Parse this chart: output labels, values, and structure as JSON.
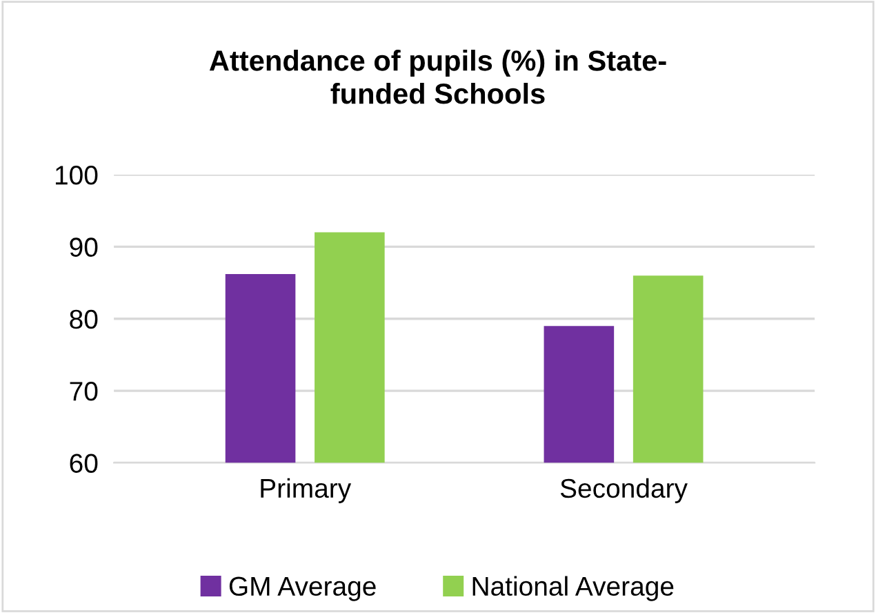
{
  "chart_data": {
    "type": "bar",
    "title": "Attendance of pupils (%) in State-\nfunded Schools",
    "categories": [
      "Primary",
      "Secondary"
    ],
    "series": [
      {
        "name": "GM Average",
        "color": "#7030a0",
        "values": [
          86.2,
          79.0
        ]
      },
      {
        "name": "National Average",
        "color": "#92d050",
        "values": [
          92.0,
          86.0
        ]
      }
    ],
    "ylim": [
      60,
      100
    ],
    "yticks": [
      60,
      70,
      80,
      90,
      100
    ],
    "grid": "y",
    "legend": "bottom"
  }
}
